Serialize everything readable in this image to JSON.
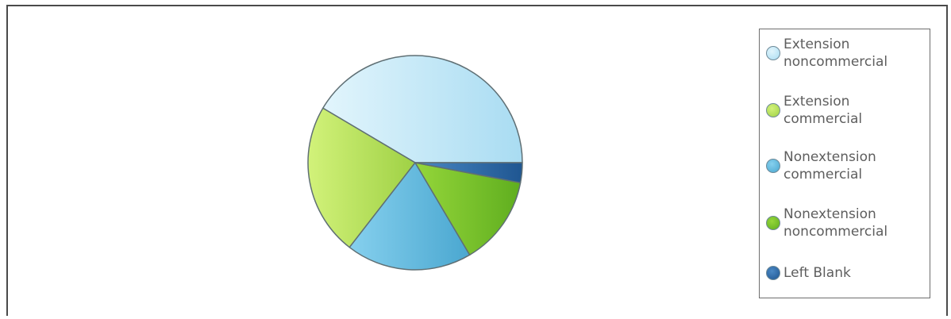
{
  "chart_data": {
    "type": "pie",
    "title": "",
    "slices": [
      {
        "label": "Extension noncommercial",
        "value": 41.5,
        "color": "#bfe6f6",
        "gradient": [
          "#e2f5fc",
          "#a9dcf2"
        ]
      },
      {
        "label": "Extension commercial",
        "value": 23.0,
        "color": "#b8e05c",
        "gradient": [
          "#d2f27a",
          "#9fd145"
        ]
      },
      {
        "label": "Nonextension commercial",
        "value": 19.0,
        "color": "#5eb8de",
        "gradient": [
          "#86d0ee",
          "#4aa7d0"
        ]
      },
      {
        "label": "Nonextension noncommercial",
        "value": 13.5,
        "color": "#79c02b",
        "gradient": [
          "#95d63a",
          "#5fae1f"
        ]
      },
      {
        "label": "Left Blank",
        "value": 3.0,
        "color": "#2d6aa8",
        "gradient": [
          "#4a88c4",
          "#1f5691"
        ]
      }
    ],
    "start_angle_deg": 0,
    "direction": "counterclockwise",
    "legend_position": "right"
  }
}
